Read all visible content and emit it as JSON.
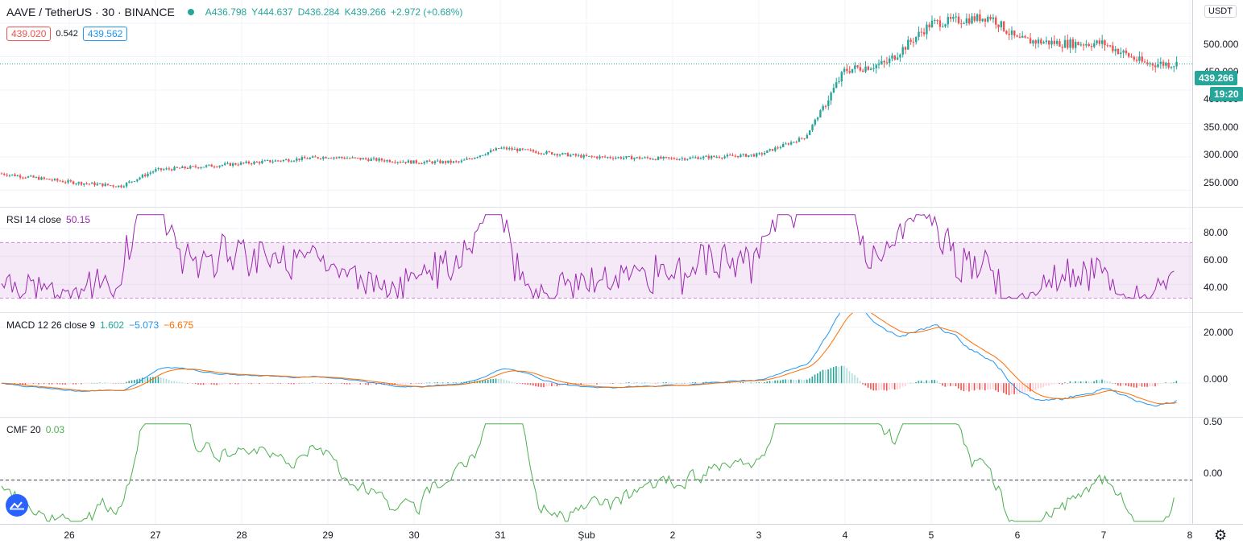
{
  "header": {
    "symbol": "AAVE / TetherUS · 30 · BINANCE",
    "open": "A436.798",
    "high": "Y444.637",
    "low": "D436.284",
    "close": "K439.266",
    "change": "+2.972 (+0.68%)",
    "bid": "439.020",
    "spread": "0.542",
    "ask": "439.562",
    "status_color": "#26a69a"
  },
  "price_axis": {
    "currency": "USDT",
    "labels": [
      "500.000",
      "450.000",
      "400.000",
      "350.000",
      "300.000",
      "250.000"
    ],
    "last_price": "439.266",
    "countdown": "19:20"
  },
  "rsi": {
    "label": "RSI 14 close",
    "value": "50.15",
    "axis": [
      "80.00",
      "60.00",
      "40.00"
    ],
    "color": "#9c27b0"
  },
  "macd": {
    "label": "MACD 12 26 close 9",
    "hist": "1.602",
    "macd": "−5.073",
    "signal": "−6.675",
    "axis": [
      "20.000",
      "0.000"
    ],
    "macd_color": "#2196f3",
    "signal_color": "#ff6d00"
  },
  "cmf": {
    "label": "CMF 20",
    "value": "0.03",
    "axis": [
      "0.50",
      "0.00"
    ],
    "color": "#4caf50"
  },
  "time_axis": [
    "26",
    "27",
    "28",
    "29",
    "30",
    "31",
    "Şub",
    "2",
    "3",
    "4",
    "5",
    "6",
    "7",
    "8"
  ],
  "colors": {
    "up": "#26a69a",
    "down": "#ef5350"
  },
  "chart_data": [
    {
      "type": "candlestick",
      "title": "AAVE / TetherUS · 30 · BINANCE",
      "x": [
        "26",
        "27",
        "28",
        "29",
        "30",
        "31",
        "Şub",
        "2",
        "3",
        "4",
        "5",
        "6",
        "7",
        "8"
      ],
      "close_path": [
        {
          "x": "25",
          "y": 275
        },
        {
          "x": "26",
          "y": 262
        },
        {
          "x": "26.5",
          "y": 256
        },
        {
          "x": "27",
          "y": 280
        },
        {
          "x": "28",
          "y": 290
        },
        {
          "x": "29",
          "y": 300
        },
        {
          "x": "30",
          "y": 292
        },
        {
          "x": "30.5",
          "y": 292
        },
        {
          "x": "31",
          "y": 313
        },
        {
          "x": "Şub",
          "y": 300
        },
        {
          "x": "2",
          "y": 297
        },
        {
          "x": "3",
          "y": 303
        },
        {
          "x": "3.5",
          "y": 330
        },
        {
          "x": "4",
          "y": 430
        },
        {
          "x": "4.5",
          "y": 440
        },
        {
          "x": "5",
          "y": 500
        },
        {
          "x": "5.5",
          "y": 510
        },
        {
          "x": "6",
          "y": 475
        },
        {
          "x": "6.5",
          "y": 470
        },
        {
          "x": "7",
          "y": 470
        },
        {
          "x": "7.5",
          "y": 440
        },
        {
          "x": "8",
          "y": 439.266
        }
      ],
      "ylim": [
        225,
        535
      ],
      "last": 439.266
    },
    {
      "type": "line",
      "title": "RSI 14 close",
      "band": [
        30,
        70
      ],
      "ylim": [
        20,
        95
      ],
      "series": [
        {
          "name": "RSI",
          "color": "#9c27b0",
          "last": 50.15
        }
      ]
    },
    {
      "type": "line",
      "title": "MACD 12 26 close 9",
      "ylim": [
        -12,
        25
      ],
      "series": [
        {
          "name": "MACD",
          "color": "#2196f3",
          "last": -5.073
        },
        {
          "name": "Signal",
          "color": "#ff6d00",
          "last": -6.675
        },
        {
          "name": "Histogram",
          "last": 1.602
        }
      ]
    },
    {
      "type": "line",
      "title": "CMF 20",
      "ylim": [
        -0.35,
        0.5
      ],
      "series": [
        {
          "name": "CMF",
          "color": "#4caf50",
          "last": 0.03
        }
      ]
    }
  ]
}
